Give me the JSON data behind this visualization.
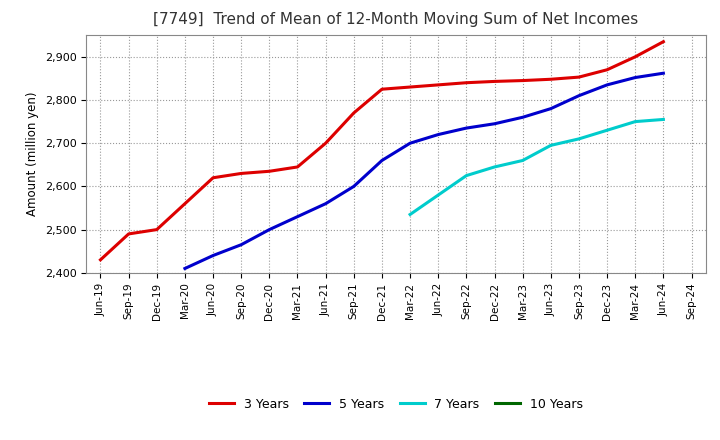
{
  "title": "[7749]  Trend of Mean of 12-Month Moving Sum of Net Incomes",
  "ylabel": "Amount (million yen)",
  "ylim": [
    2400,
    2950
  ],
  "yticks": [
    2400,
    2500,
    2600,
    2700,
    2800,
    2900
  ],
  "background_color": "#ffffff",
  "grid_color": "#999999",
  "series": {
    "3 Years": {
      "color": "#dd0000",
      "x": [
        "Jun-19",
        "Sep-19",
        "Dec-19",
        "Mar-20",
        "Jun-20",
        "Sep-20",
        "Dec-20",
        "Mar-21",
        "Jun-21",
        "Sep-21",
        "Dec-21",
        "Mar-22",
        "Jun-22",
        "Sep-22",
        "Dec-22",
        "Mar-23",
        "Jun-23",
        "Sep-23",
        "Dec-23",
        "Mar-24",
        "Jun-24"
      ],
      "y": [
        2430,
        2490,
        2500,
        2560,
        2620,
        2630,
        2635,
        2645,
        2700,
        2770,
        2825,
        2830,
        2835,
        2840,
        2843,
        2845,
        2848,
        2853,
        2870,
        2900,
        2935
      ]
    },
    "5 Years": {
      "color": "#0000cc",
      "x": [
        "Mar-20",
        "Jun-20",
        "Sep-20",
        "Dec-20",
        "Mar-21",
        "Jun-21",
        "Sep-21",
        "Dec-21",
        "Mar-22",
        "Jun-22",
        "Sep-22",
        "Dec-22",
        "Mar-23",
        "Jun-23",
        "Sep-23",
        "Dec-23",
        "Mar-24",
        "Jun-24"
      ],
      "y": [
        2410,
        2440,
        2465,
        2500,
        2530,
        2560,
        2600,
        2660,
        2700,
        2720,
        2735,
        2745,
        2760,
        2780,
        2810,
        2835,
        2852,
        2862
      ]
    },
    "7 Years": {
      "color": "#00cccc",
      "x": [
        "Mar-22",
        "Jun-22",
        "Sep-22",
        "Dec-22",
        "Mar-23",
        "Jun-23",
        "Sep-23",
        "Dec-23",
        "Mar-24",
        "Jun-24"
      ],
      "y": [
        2535,
        2580,
        2625,
        2645,
        2660,
        2695,
        2710,
        2730,
        2750,
        2755
      ]
    },
    "10 Years": {
      "color": "#006600",
      "x": [],
      "y": []
    }
  },
  "legend_entries": [
    "3 Years",
    "5 Years",
    "7 Years",
    "10 Years"
  ],
  "all_xticks": [
    "Jun-19",
    "Sep-19",
    "Dec-19",
    "Mar-20",
    "Jun-20",
    "Sep-20",
    "Dec-20",
    "Mar-21",
    "Jun-21",
    "Sep-21",
    "Dec-21",
    "Mar-22",
    "Jun-22",
    "Sep-22",
    "Dec-22",
    "Mar-23",
    "Jun-23",
    "Sep-23",
    "Dec-23",
    "Mar-24",
    "Jun-24",
    "Sep-24"
  ]
}
